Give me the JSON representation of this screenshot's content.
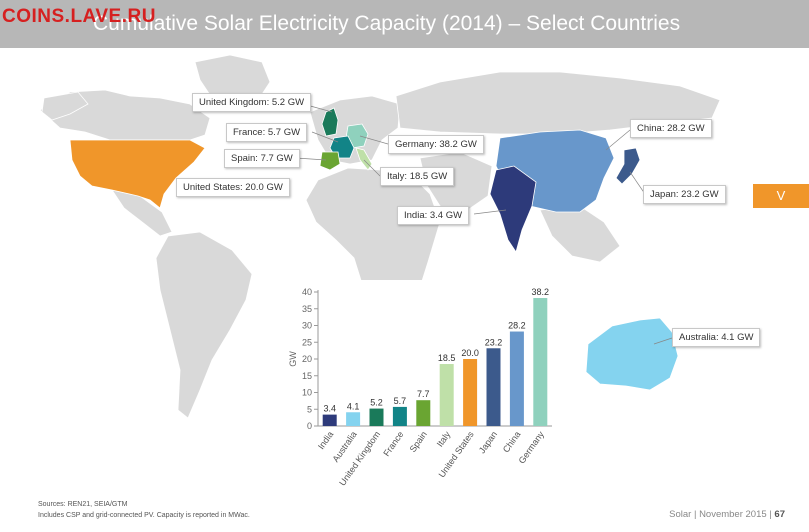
{
  "header": {
    "title": "Cumulative Solar Electricity Capacity (2014) – Select Countries",
    "watermark": "COINS.LAVE.RU"
  },
  "side_tab": {
    "label": "V"
  },
  "map_callouts": [
    {
      "label": "United Kingdom:  5.2 GW"
    },
    {
      "label": "France:  5.7 GW"
    },
    {
      "label": "Spain:  7.7 GW"
    },
    {
      "label": "Germany:  38.2 GW"
    },
    {
      "label": "Italy:  18.5 GW"
    },
    {
      "label": "United States:  20.0 GW"
    },
    {
      "label": "India:  3.4 GW"
    },
    {
      "label": "China:  28.2 GW"
    },
    {
      "label": "Japan:  23.2 GW"
    },
    {
      "label": "Australia:  4.1 GW"
    }
  ],
  "map_colors": {
    "united_states": "#f0962a",
    "china": "#6897cb",
    "india": "#2d3a7a",
    "japan": "#3c5a8c",
    "australia": "#84d3ef",
    "germany": "#8fd1bd",
    "united_kingdom": "#1a7a5a",
    "france": "#128487",
    "spain": "#6aa532",
    "italy": "#bfe0a8"
  },
  "chart_data": {
    "type": "bar",
    "categories": [
      "India",
      "Australia",
      "United Kingdom",
      "France",
      "Spain",
      "Italy",
      "United States",
      "Japan",
      "China",
      "Germany"
    ],
    "values": [
      3.4,
      4.1,
      5.2,
      5.7,
      7.7,
      18.5,
      20.0,
      23.2,
      28.2,
      38.2
    ],
    "value_labels": [
      "3.4",
      "4.1",
      "5.2",
      "5.7",
      "7.7",
      "18.5",
      "20.0",
      "23.2",
      "28.2",
      "38.2"
    ],
    "colors": [
      "#2d3a7a",
      "#84d3ef",
      "#1a7a5a",
      "#128487",
      "#6aa532",
      "#bfe0a8",
      "#f0962a",
      "#3c5a8c",
      "#6897cb",
      "#8fd1bd"
    ],
    "ylabel": "GW",
    "xlabel": "",
    "ylim": [
      0,
      40
    ],
    "yticks": [
      "0",
      "5",
      "10",
      "15",
      "20",
      "25",
      "30",
      "35",
      "40"
    ],
    "grid": false
  },
  "footer": {
    "sources": "Sources: REN21, SEIA/GTM",
    "note": "Includes CSP and grid-connected PV. Capacity is reported in MWac.",
    "section": "Solar",
    "date": "November 2015",
    "page": "67",
    "separator": "|"
  }
}
